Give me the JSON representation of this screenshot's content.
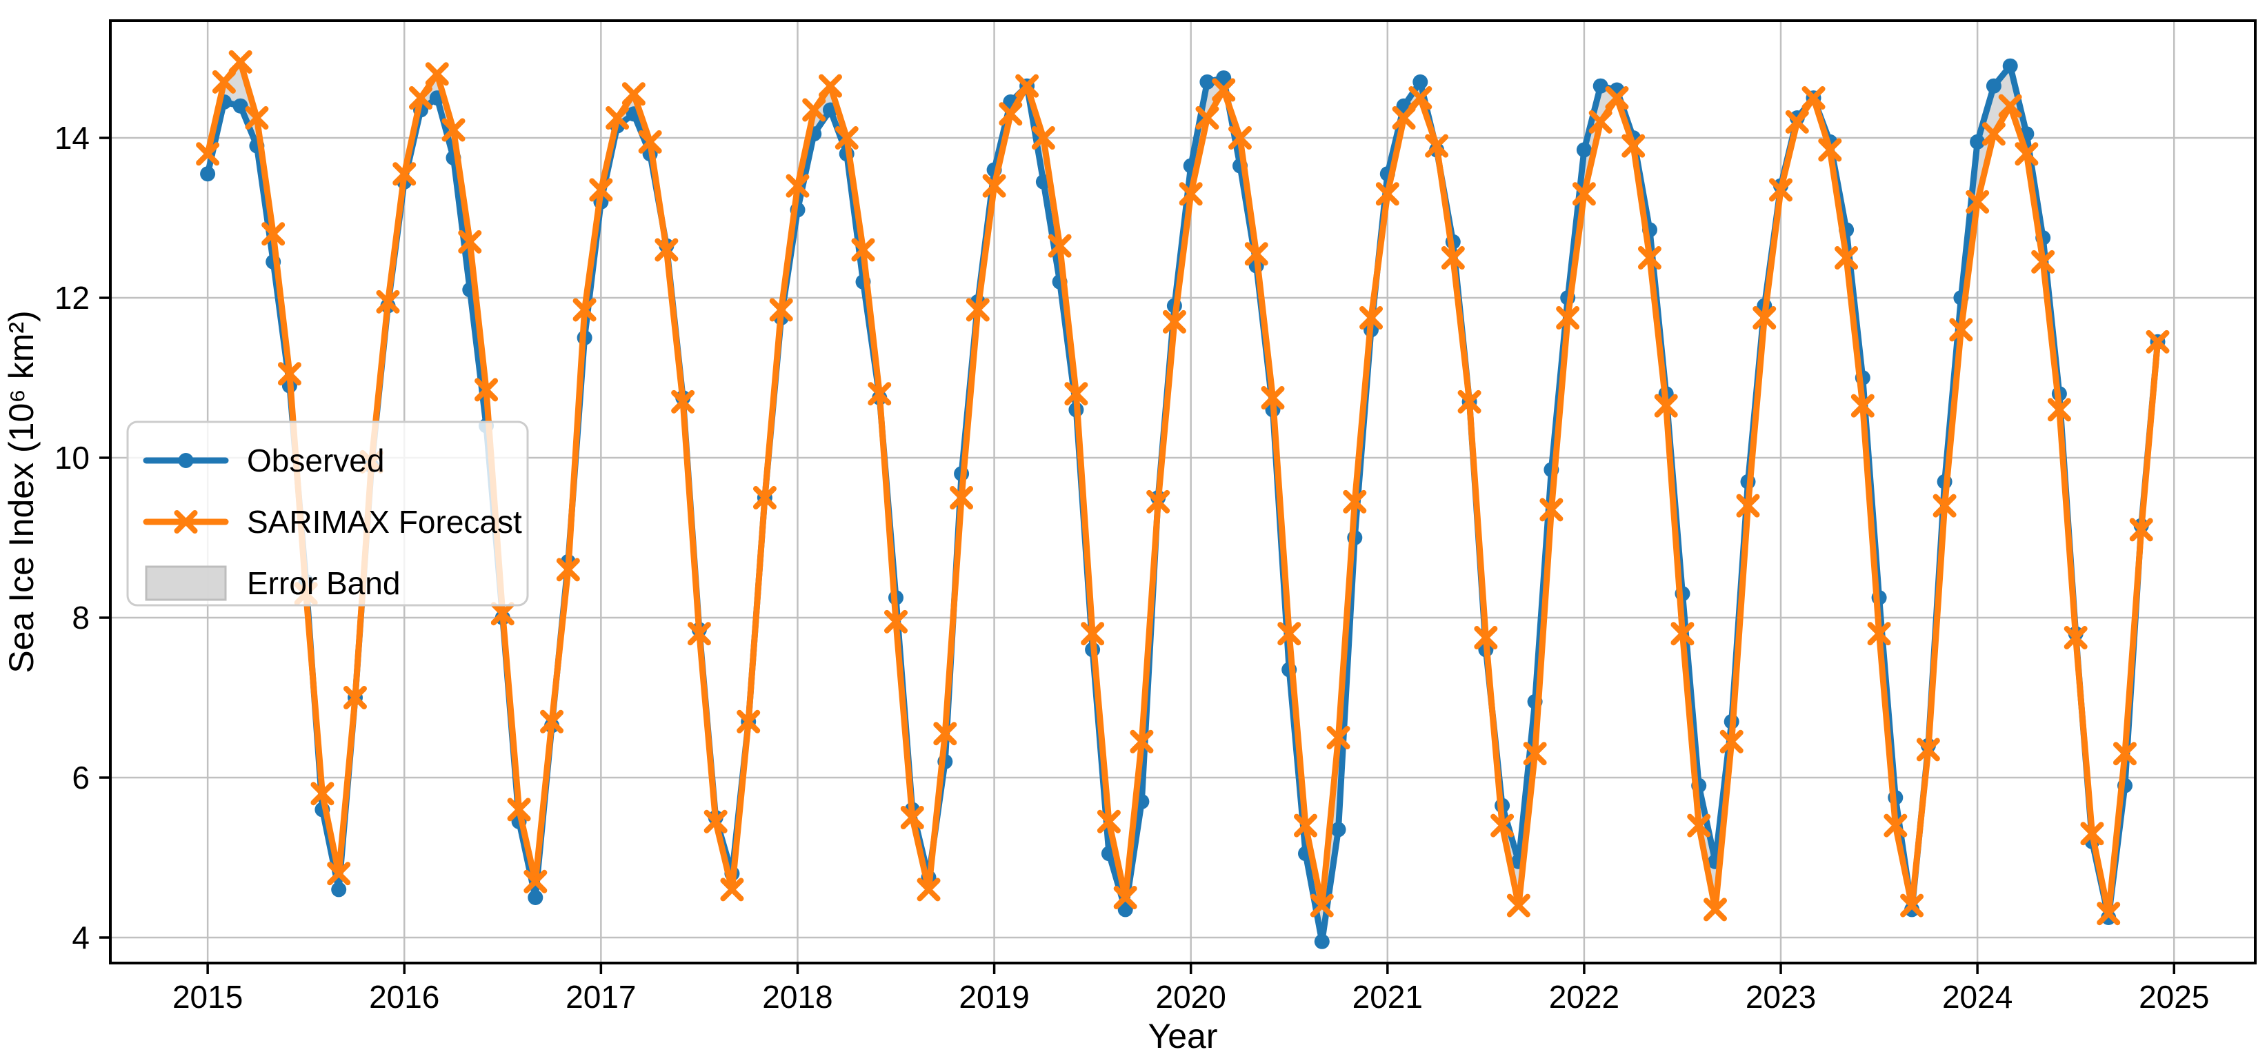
{
  "chart_data": {
    "type": "line",
    "title": "",
    "xlabel": "Year",
    "ylabel": "Sea Ice Index (10⁶ km²)",
    "legend_position": "center-left",
    "grid": true,
    "xlim": [
      2014.505,
      2025.413
    ],
    "ylim": [
      3.681,
      15.466
    ],
    "x_ticks": [
      2015,
      2016,
      2017,
      2018,
      2019,
      2020,
      2021,
      2022,
      2023,
      2024,
      2025
    ],
    "y_ticks": [
      4,
      6,
      8,
      10,
      12,
      14
    ],
    "x_start": "2015-01",
    "x_end": "2024-12",
    "frequency": "monthly",
    "months": [
      "2015-01",
      "2015-02",
      "2015-03",
      "2015-04",
      "2015-05",
      "2015-06",
      "2015-07",
      "2015-08",
      "2015-09",
      "2015-10",
      "2015-11",
      "2015-12",
      "2016-01",
      "2016-02",
      "2016-03",
      "2016-04",
      "2016-05",
      "2016-06",
      "2016-07",
      "2016-08",
      "2016-09",
      "2016-10",
      "2016-11",
      "2016-12",
      "2017-01",
      "2017-02",
      "2017-03",
      "2017-04",
      "2017-05",
      "2017-06",
      "2017-07",
      "2017-08",
      "2017-09",
      "2017-10",
      "2017-11",
      "2017-12",
      "2018-01",
      "2018-02",
      "2018-03",
      "2018-04",
      "2018-05",
      "2018-06",
      "2018-07",
      "2018-08",
      "2018-09",
      "2018-10",
      "2018-11",
      "2018-12",
      "2019-01",
      "2019-02",
      "2019-03",
      "2019-04",
      "2019-05",
      "2019-06",
      "2019-07",
      "2019-08",
      "2019-09",
      "2019-10",
      "2019-11",
      "2019-12",
      "2020-01",
      "2020-02",
      "2020-03",
      "2020-04",
      "2020-05",
      "2020-06",
      "2020-07",
      "2020-08",
      "2020-09",
      "2020-10",
      "2020-11",
      "2020-12",
      "2021-01",
      "2021-02",
      "2021-03",
      "2021-04",
      "2021-05",
      "2021-06",
      "2021-07",
      "2021-08",
      "2021-09",
      "2021-10",
      "2021-11",
      "2021-12",
      "2022-01",
      "2022-02",
      "2022-03",
      "2022-04",
      "2022-05",
      "2022-06",
      "2022-07",
      "2022-08",
      "2022-09",
      "2022-10",
      "2022-11",
      "2022-12",
      "2023-01",
      "2023-02",
      "2023-03",
      "2023-04",
      "2023-05",
      "2023-06",
      "2023-07",
      "2023-08",
      "2023-09",
      "2023-10",
      "2023-11",
      "2023-12",
      "2024-01",
      "2024-02",
      "2024-03",
      "2024-04",
      "2024-05",
      "2024-06",
      "2024-07",
      "2024-08",
      "2024-09",
      "2024-10",
      "2024-11",
      "2024-12"
    ],
    "series": [
      {
        "name": "Observed",
        "color": "#1f77b4",
        "marker": "circle",
        "values": [
          13.55,
          14.45,
          14.4,
          13.9,
          12.45,
          10.9,
          8.45,
          5.6,
          4.6,
          7.0,
          9.9,
          11.9,
          13.45,
          14.35,
          14.5,
          13.75,
          12.1,
          10.4,
          8.0,
          5.45,
          4.5,
          6.65,
          8.7,
          11.5,
          13.2,
          14.15,
          14.3,
          13.8,
          12.65,
          10.75,
          7.85,
          5.5,
          4.8,
          6.7,
          9.5,
          11.75,
          13.1,
          14.05,
          14.35,
          13.8,
          12.2,
          10.75,
          8.25,
          5.6,
          4.75,
          6.2,
          9.8,
          11.95,
          13.6,
          14.45,
          14.65,
          13.45,
          12.2,
          10.6,
          7.6,
          5.05,
          4.35,
          5.7,
          9.5,
          11.9,
          13.65,
          14.7,
          14.75,
          13.65,
          12.4,
          10.6,
          7.35,
          5.05,
          3.95,
          5.35,
          9.0,
          11.6,
          13.55,
          14.4,
          14.7,
          13.85,
          12.7,
          10.7,
          7.6,
          5.65,
          4.95,
          6.95,
          9.85,
          12.0,
          13.85,
          14.65,
          14.6,
          14.0,
          12.85,
          10.8,
          8.3,
          5.9,
          4.95,
          6.7,
          9.7,
          11.9,
          13.4,
          14.25,
          14.5,
          13.95,
          12.85,
          11.0,
          8.25,
          5.75,
          4.35,
          6.4,
          9.7,
          12.0,
          13.95,
          14.65,
          14.9,
          14.05,
          12.75,
          10.8,
          7.8,
          5.2,
          4.25,
          5.9,
          9.15,
          11.45
        ]
      },
      {
        "name": "SARIMAX Forecast",
        "color": "#ff7f0e",
        "marker": "x",
        "values": [
          13.8,
          14.7,
          14.95,
          14.25,
          12.8,
          11.05,
          8.3,
          5.8,
          4.8,
          7.0,
          9.95,
          11.95,
          13.55,
          14.5,
          14.8,
          14.1,
          12.7,
          10.85,
          8.05,
          5.6,
          4.7,
          6.7,
          8.6,
          11.85,
          13.35,
          14.25,
          14.55,
          13.95,
          12.6,
          10.7,
          7.8,
          5.45,
          4.6,
          6.7,
          9.5,
          11.85,
          13.4,
          14.35,
          14.65,
          14.0,
          12.6,
          10.8,
          7.95,
          5.5,
          4.6,
          6.55,
          9.5,
          11.85,
          13.4,
          14.3,
          14.65,
          14.0,
          12.65,
          10.8,
          7.8,
          5.45,
          4.5,
          6.45,
          9.45,
          11.7,
          13.3,
          14.25,
          14.6,
          14.0,
          12.55,
          10.75,
          7.8,
          5.4,
          4.4,
          6.5,
          9.45,
          11.75,
          13.3,
          14.25,
          14.5,
          13.9,
          12.5,
          10.7,
          7.75,
          5.4,
          4.4,
          6.3,
          9.35,
          11.75,
          13.3,
          14.2,
          14.5,
          13.9,
          12.5,
          10.65,
          7.8,
          5.4,
          4.35,
          6.45,
          9.4,
          11.75,
          13.35,
          14.2,
          14.5,
          13.85,
          12.5,
          10.65,
          7.8,
          5.4,
          4.4,
          6.35,
          9.4,
          11.6,
          13.2,
          14.05,
          14.4,
          13.8,
          12.45,
          10.6,
          7.75,
          5.3,
          4.3,
          6.3,
          9.1,
          11.45
        ]
      }
    ],
    "band": {
      "label": "Error Band",
      "between": [
        "Observed",
        "SARIMAX Forecast"
      ],
      "color": "#d3d3d3"
    },
    "legend": [
      {
        "label": "Observed",
        "swatch": "line-circle",
        "color": "#1f77b4"
      },
      {
        "label": "SARIMAX Forecast",
        "swatch": "line-x",
        "color": "#ff7f0e"
      },
      {
        "label": "Error Band",
        "swatch": "patch",
        "color": "#d3d3d3"
      }
    ],
    "colors": {
      "observed": "#1f77b4",
      "forecast": "#ff7f0e",
      "error_band": "#d3d3d3",
      "grid": "#c0c0c0",
      "spine": "#000000",
      "text": "#000000",
      "legend_border": "#cccccc",
      "legend_bg": "rgba(255,255,255,0.8)"
    }
  }
}
